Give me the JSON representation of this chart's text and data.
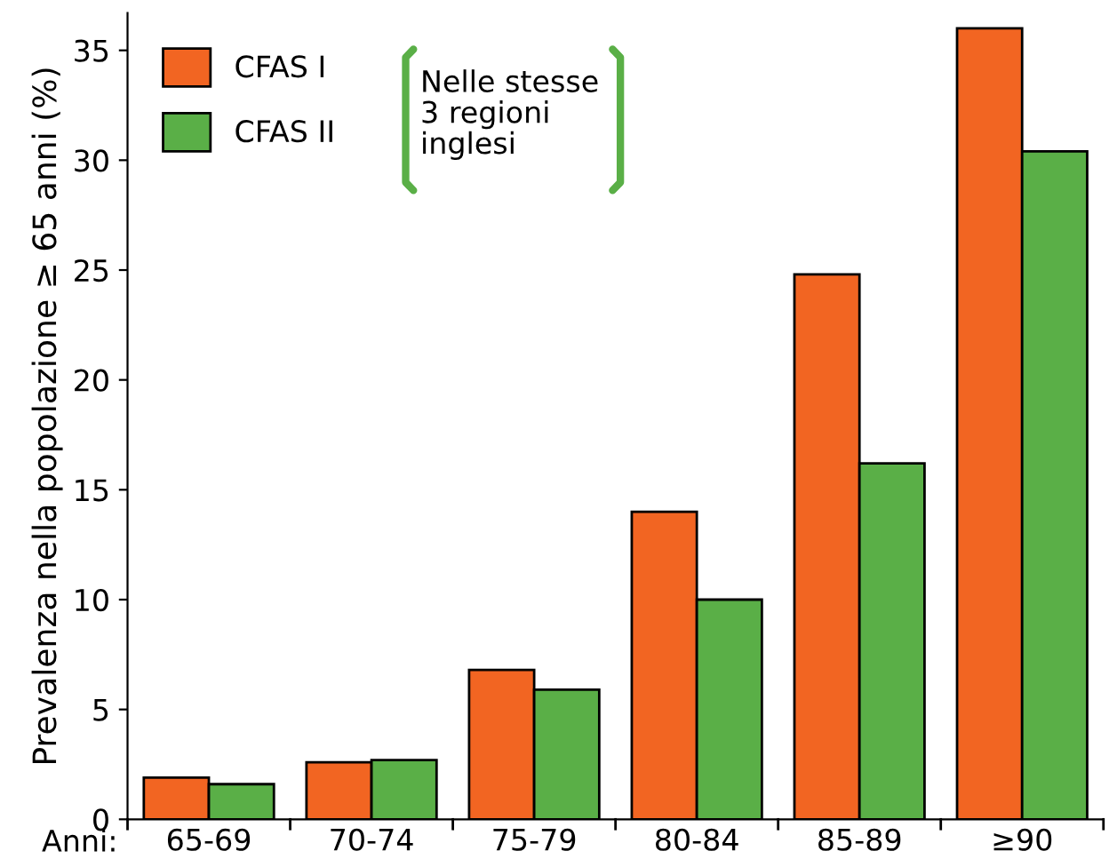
{
  "chart_data": {
    "type": "bar",
    "ylabel": "Prevalenza nella popolazione ≥ 65 anni (%)",
    "xlabel": "Anni:",
    "categories": [
      "65-69",
      "70-74",
      "75-79",
      "80-84",
      "85-89",
      "≥90"
    ],
    "series": [
      {
        "name": "CFAS I",
        "color": "#f26522",
        "values": [
          1.9,
          2.6,
          6.8,
          14.0,
          24.8,
          36.0
        ]
      },
      {
        "name": "CFAS II",
        "color": "#5aaf47",
        "values": [
          1.6,
          2.7,
          5.9,
          10.0,
          16.2,
          30.4
        ]
      }
    ],
    "ylim": [
      0,
      36.7
    ],
    "yticks": [
      0,
      5,
      10,
      15,
      20,
      25,
      30,
      35
    ],
    "annotations": [
      "Nelle stesse\n3 regioni\ninglesi"
    ],
    "legend": "top left",
    "grid": false
  }
}
